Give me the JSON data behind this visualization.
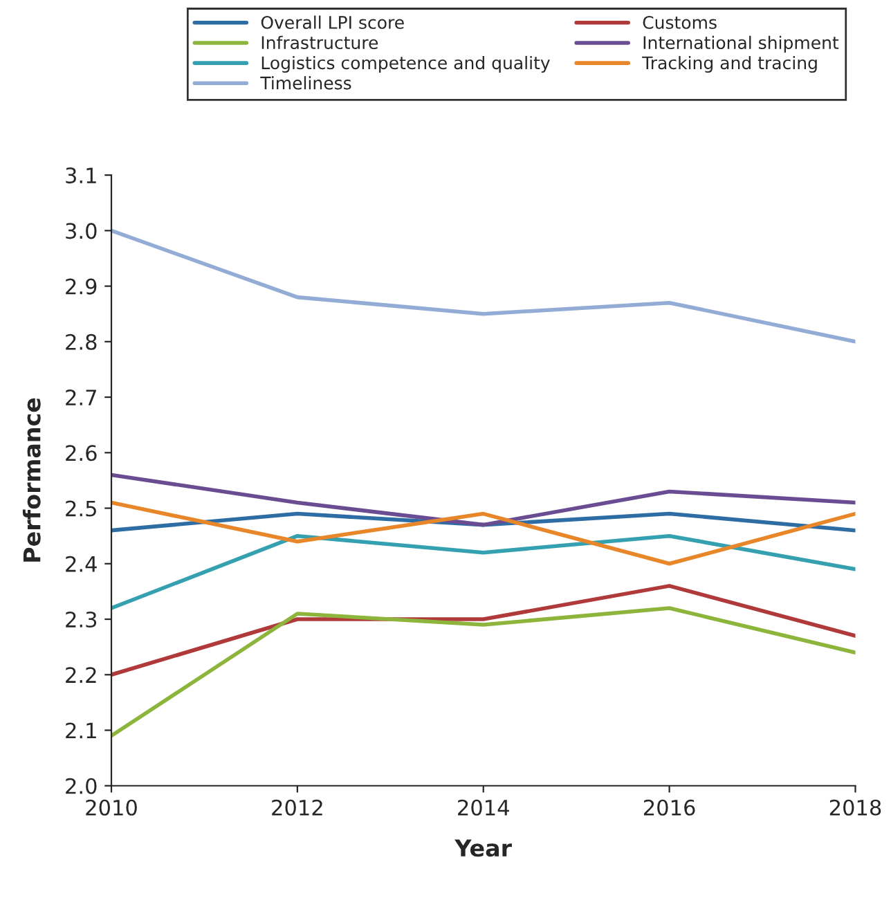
{
  "chart_data": {
    "type": "line",
    "xlabel": "Year",
    "ylabel": "Performance",
    "x": [
      2010,
      2012,
      2014,
      2016,
      2018
    ],
    "series": [
      {
        "name": "Overall LPI score",
        "color": "#2e6da4",
        "values": [
          2.46,
          2.49,
          2.47,
          2.49,
          2.46
        ]
      },
      {
        "name": "Customs",
        "color": "#b03a3a",
        "values": [
          2.2,
          2.3,
          2.3,
          2.36,
          2.27
        ]
      },
      {
        "name": "Infrastructure",
        "color": "#8db53c",
        "values": [
          2.09,
          2.31,
          2.29,
          2.32,
          2.24
        ]
      },
      {
        "name": "International shipment",
        "color": "#6a4c93",
        "values": [
          2.56,
          2.51,
          2.47,
          2.53,
          2.51
        ]
      },
      {
        "name": "Logistics competence and quality",
        "color": "#34a0b0",
        "values": [
          2.32,
          2.45,
          2.42,
          2.45,
          2.39
        ]
      },
      {
        "name": "Tracking and tracing",
        "color": "#e8862a",
        "values": [
          2.51,
          2.44,
          2.49,
          2.4,
          2.49
        ]
      },
      {
        "name": "Timeliness",
        "color": "#93acd6",
        "values": [
          3.0,
          2.88,
          2.85,
          2.87,
          2.8
        ]
      }
    ],
    "xlim": [
      2010,
      2018
    ],
    "xticks": [
      2010,
      2012,
      2014,
      2016,
      2018
    ],
    "ylim": [
      2.0,
      3.1
    ],
    "yticks": [
      {
        "value": 2,
        "label": "2.0"
      },
      2.1,
      2.2,
      2.3,
      2.4,
      2.5,
      2.6,
      2.7,
      2.8,
      2.9,
      {
        "value": 3,
        "label": "3.0"
      },
      3.1
    ],
    "grid": false,
    "legend": "top",
    "marker": "none",
    "line_style": "solid"
  }
}
